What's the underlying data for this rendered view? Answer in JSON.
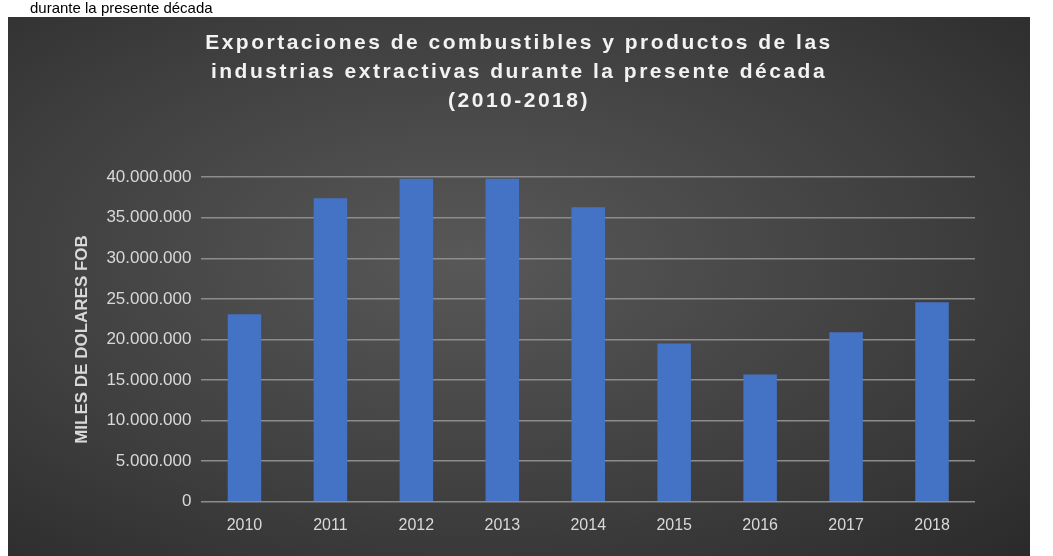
{
  "chart_data": {
    "type": "bar",
    "title": "Exportaciones de combustibles y productos de las industrias extractivas durante la presente década (2010-2018)",
    "ylabel": "MILES DE DOLARES FOB",
    "categories": [
      "2010",
      "2011",
      "2012",
      "2013",
      "2014",
      "2015",
      "2016",
      "2017",
      "2018"
    ],
    "values": [
      23100000,
      37400000,
      39800000,
      39800000,
      36300000,
      19500000,
      15700000,
      20900000,
      24600000
    ],
    "color": "#4472c4",
    "ylim": [
      0,
      40000000
    ],
    "yticks": [
      {
        "value": 0,
        "label": "0"
      },
      {
        "value": 5000000,
        "label": "5.000.000"
      },
      {
        "value": 10000000,
        "label": "10.000.000"
      },
      {
        "value": 15000000,
        "label": "15.000.000"
      },
      {
        "value": 20000000,
        "label": "20.000.000"
      },
      {
        "value": 25000000,
        "label": "25.000.000"
      },
      {
        "value": 30000000,
        "label": "30.000.000"
      },
      {
        "value": 35000000,
        "label": "35.000.000"
      },
      {
        "value": 40000000,
        "label": "40.000.000"
      }
    ],
    "grid": "y",
    "legend": false,
    "annotations": [
      "durante la presente década"
    ]
  }
}
